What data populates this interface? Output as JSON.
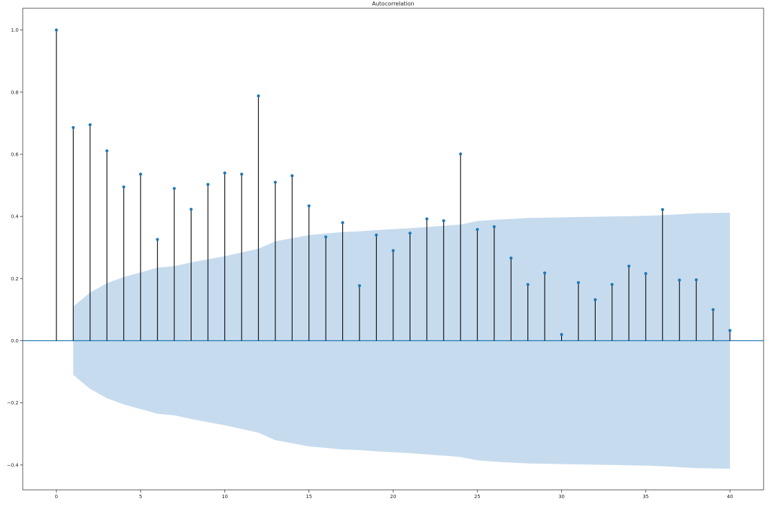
{
  "chart_data": {
    "type": "stem",
    "title": "Autocorrelation",
    "xlabel": "",
    "ylabel": "",
    "xlim": [
      -2,
      42
    ],
    "ylim": [
      -0.48,
      1.07
    ],
    "xticks": [
      0,
      5,
      10,
      15,
      20,
      25,
      30,
      35,
      40
    ],
    "xtick_labels": [
      "0",
      "5",
      "10",
      "15",
      "20",
      "25",
      "30",
      "35",
      "40"
    ],
    "yticks": [
      -0.4,
      -0.2,
      0.0,
      0.2,
      0.4,
      0.6,
      0.8,
      1.0
    ],
    "ytick_labels": [
      "−0.4",
      "−0.2",
      "0.0",
      "0.2",
      "0.4",
      "0.6",
      "0.8",
      "1.0"
    ],
    "grid": false,
    "lags": [
      0,
      1,
      2,
      3,
      4,
      5,
      6,
      7,
      8,
      9,
      10,
      11,
      12,
      13,
      14,
      15,
      16,
      17,
      18,
      19,
      20,
      21,
      22,
      23,
      24,
      25,
      26,
      27,
      28,
      29,
      30,
      31,
      32,
      33,
      34,
      35,
      36,
      37,
      38,
      39,
      40
    ],
    "values": [
      1.0,
      0.686,
      0.695,
      0.611,
      0.495,
      0.536,
      0.326,
      0.49,
      0.423,
      0.503,
      0.54,
      0.536,
      0.788,
      0.51,
      0.531,
      0.434,
      0.334,
      0.38,
      0.177,
      0.34,
      0.29,
      0.346,
      0.392,
      0.386,
      0.601,
      0.358,
      0.367,
      0.266,
      0.181,
      0.218,
      0.02,
      0.187,
      0.132,
      0.181,
      0.24,
      0.216,
      0.422,
      0.195,
      0.196,
      0.1,
      0.033
    ],
    "confidence_band": {
      "lags": [
        1,
        2,
        3,
        4,
        5,
        6,
        7,
        8,
        9,
        10,
        11,
        12,
        13,
        14,
        15,
        16,
        17,
        18,
        19,
        20,
        21,
        22,
        23,
        24,
        25,
        26,
        27,
        28,
        29,
        30,
        31,
        32,
        33,
        34,
        35,
        36,
        37,
        38,
        39,
        40
      ],
      "upper": [
        0.11,
        0.155,
        0.185,
        0.205,
        0.22,
        0.235,
        0.24,
        0.252,
        0.262,
        0.272,
        0.284,
        0.296,
        0.32,
        0.33,
        0.34,
        0.345,
        0.35,
        0.352,
        0.356,
        0.359,
        0.362,
        0.366,
        0.37,
        0.374,
        0.385,
        0.389,
        0.392,
        0.395,
        0.396,
        0.397,
        0.398,
        0.399,
        0.4,
        0.401,
        0.402,
        0.404,
        0.407,
        0.41,
        0.411,
        0.412
      ],
      "lower": [
        -0.11,
        -0.155,
        -0.185,
        -0.205,
        -0.22,
        -0.235,
        -0.24,
        -0.252,
        -0.262,
        -0.272,
        -0.284,
        -0.296,
        -0.32,
        -0.33,
        -0.34,
        -0.345,
        -0.35,
        -0.352,
        -0.356,
        -0.359,
        -0.362,
        -0.366,
        -0.37,
        -0.374,
        -0.385,
        -0.389,
        -0.392,
        -0.395,
        -0.396,
        -0.397,
        -0.398,
        -0.399,
        -0.4,
        -0.401,
        -0.402,
        -0.404,
        -0.407,
        -0.41,
        -0.411,
        -0.412
      ]
    },
    "colors": {
      "marker": "#1f77b4",
      "stem": "#000000",
      "baseline": "#1f77b4",
      "band": "#c6dbee",
      "axes": "#333333"
    }
  }
}
